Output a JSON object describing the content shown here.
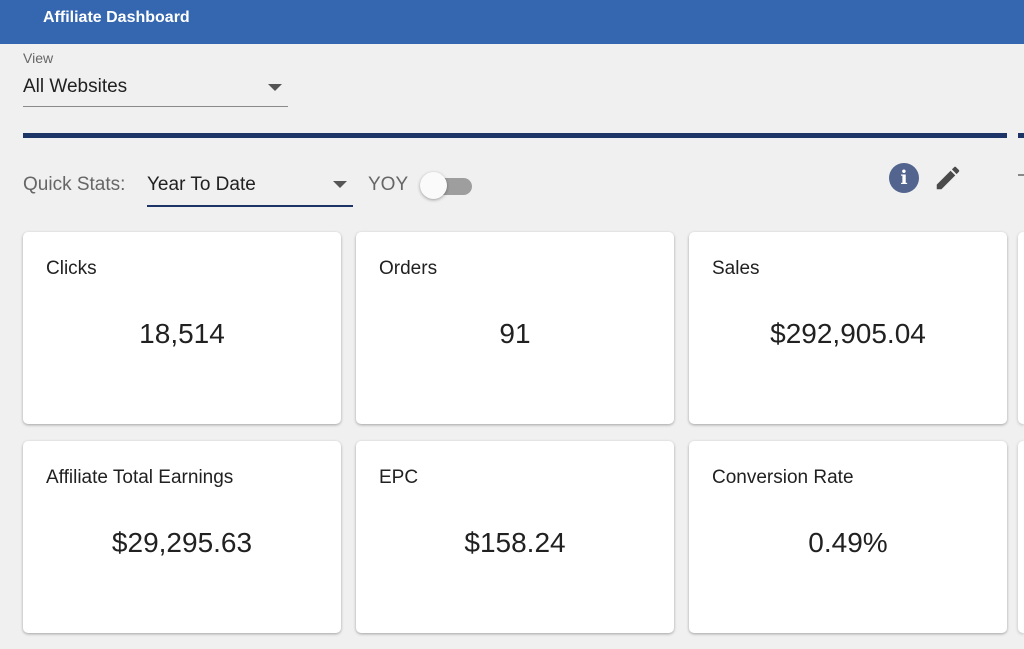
{
  "app": {
    "title": "Affiliate Dashboard"
  },
  "view": {
    "label": "View",
    "selected": "All Websites"
  },
  "quick_stats": {
    "label": "Quick Stats:",
    "period": "Year To Date",
    "yoy_label": "YOY",
    "yoy_enabled": false
  },
  "toolbar_icons": {
    "info": "info-icon",
    "edit": "pencil-icon"
  },
  "cards": [
    {
      "label": "Clicks",
      "value": "18,514"
    },
    {
      "label": "Orders",
      "value": "91"
    },
    {
      "label": "Sales",
      "value": "$292,905.04"
    },
    {
      "label": "Affiliate Total Earnings",
      "value": "$29,295.63"
    },
    {
      "label": "EPC",
      "value": "$158.24"
    },
    {
      "label": "Conversion Rate",
      "value": "0.49%"
    }
  ],
  "colors": {
    "header": "#3567b0",
    "accent_dark": "#1d3566",
    "info_icon": "#53658f"
  }
}
